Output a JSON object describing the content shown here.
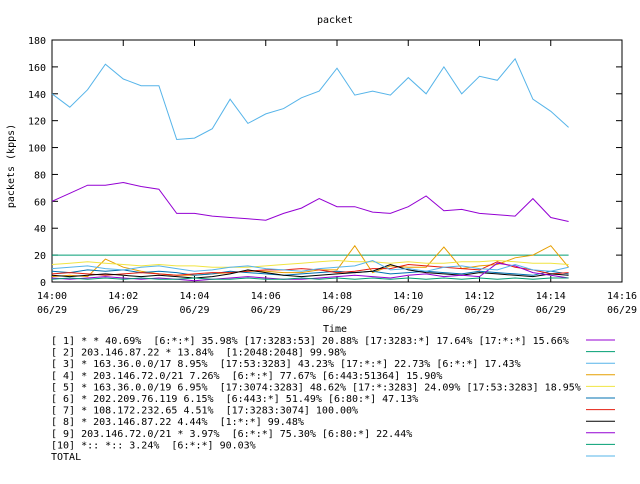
{
  "chart_data": {
    "type": "line",
    "title": "packet",
    "xlabel": "Time",
    "ylabel": "packets (kpps)",
    "ylim": [
      0,
      180
    ],
    "yticks": [
      0,
      20,
      40,
      60,
      80,
      100,
      120,
      140,
      160,
      180
    ],
    "xlim": [
      "14:00",
      "14:16"
    ],
    "xticks": [
      {
        "time": "14:00",
        "date": "06/29"
      },
      {
        "time": "14:02",
        "date": "06/29"
      },
      {
        "time": "14:04",
        "date": "06/29"
      },
      {
        "time": "14:06",
        "date": "06/29"
      },
      {
        "time": "14:08",
        "date": "06/29"
      },
      {
        "time": "14:10",
        "date": "06/29"
      },
      {
        "time": "14:12",
        "date": "06/29"
      },
      {
        "time": "14:14",
        "date": "06/29"
      },
      {
        "time": "14:16",
        "date": "06/29"
      }
    ],
    "legend_position": "bottom",
    "grid": false,
    "x": [
      "14:00",
      "14:00:30",
      "14:01",
      "14:01:30",
      "14:02",
      "14:02:30",
      "14:03",
      "14:03:30",
      "14:04",
      "14:04:30",
      "14:05",
      "14:05:30",
      "14:06",
      "14:06:30",
      "14:07",
      "14:07:30",
      "14:08",
      "14:08:30",
      "14:09",
      "14:09:30",
      "14:10",
      "14:10:30",
      "14:11",
      "14:11:30",
      "14:12",
      "14:12:30",
      "14:13",
      "14:13:30",
      "14:14",
      "14:14:30"
    ],
    "series": [
      {
        "name": "[ 1] * * 40.69%  [6:*:*] 35.98% [17:3283:53] 20.88% [17:3283:*] 17.64% [17:*:*] 15.66%",
        "color": "#9400d3",
        "values": [
          60,
          66,
          72,
          72,
          74,
          71,
          69,
          51,
          51,
          49,
          48,
          47,
          46,
          51,
          55,
          62,
          56,
          56,
          52,
          51,
          56,
          64,
          53,
          54,
          51,
          50,
          49,
          62,
          48,
          45
        ]
      },
      {
        "name": "[ 2] 203.146.87.22 * 13.84%  [1:2048:2048] 99.98%",
        "color": "#009e73",
        "values": [
          20,
          20,
          20,
          20,
          20,
          20,
          20,
          20,
          20,
          20,
          20,
          20,
          20,
          20,
          20,
          20,
          20,
          20,
          20,
          20,
          20,
          20,
          20,
          20,
          20,
          20,
          20,
          20,
          20,
          20
        ]
      },
      {
        "name": "[ 3] * 163.36.0.0/17 8.95%  [17:53:3283] 43.23% [17:*:*] 22.73% [6:*:*] 17.43%",
        "color": "#56b4e9",
        "values": [
          140,
          130,
          143,
          162,
          151,
          146,
          146,
          106,
          107,
          114,
          136,
          118,
          125,
          129,
          137,
          142,
          159,
          139,
          142,
          139,
          152,
          140,
          160,
          140,
          153,
          150,
          166,
          136,
          127,
          115
        ]
      },
      {
        "name": "[ 4] * 203.146.72.0/21 7.26%  [6:*:*] 77.67% [6:443:51364] 15.90%",
        "color": "#e69f00",
        "values": [
          4,
          5,
          4,
          17,
          11,
          8,
          6,
          5,
          5,
          6,
          7,
          8,
          8,
          7,
          7,
          9,
          9,
          27,
          7,
          12,
          11,
          11,
          26,
          10,
          12,
          13,
          18,
          20,
          27,
          11
        ]
      },
      {
        "name": "[ 5] * 163.36.0.0/19 6.95%  [17:3074:3283] 48.62% [17:*:3283] 24.09% [17:53:3283] 18.95%",
        "color": "#f0e442",
        "values": [
          13,
          14,
          15,
          14,
          13,
          12,
          13,
          12,
          12,
          11,
          11,
          11,
          12,
          13,
          14,
          15,
          16,
          15,
          15,
          14,
          15,
          14,
          14,
          15,
          15,
          16,
          15,
          14,
          14,
          13
        ]
      },
      {
        "name": "[ 6] * 202.209.76.119 6.15%  [6:443:*] 51.49% [6:80:*] 47.13%",
        "color": "#0072b2",
        "values": [
          8,
          7,
          9,
          8,
          9,
          7,
          8,
          7,
          5,
          6,
          8,
          7,
          6,
          5,
          6,
          7,
          8,
          7,
          8,
          6,
          7,
          8,
          7,
          6,
          8,
          7,
          6,
          5,
          8,
          6
        ]
      },
      {
        "name": "[ 7] * 108.172.232.65 4.51%  [17:3283:3074] 100.00%",
        "color": "#e51e10",
        "values": [
          6,
          7,
          6,
          5,
          6,
          7,
          6,
          5,
          6,
          7,
          7,
          8,
          9,
          9,
          10,
          9,
          7,
          8,
          10,
          10,
          13,
          12,
          11,
          10,
          9,
          15,
          11,
          9,
          6,
          7
        ]
      },
      {
        "name": "[ 8] * 203.146.87.22 4.44%  [1:*:*] 99.48%",
        "color": "#000000",
        "values": [
          5,
          4,
          5,
          6,
          5,
          4,
          5,
          4,
          3,
          4,
          6,
          9,
          7,
          5,
          4,
          5,
          6,
          7,
          8,
          13,
          9,
          7,
          6,
          5,
          7,
          6,
          5,
          4,
          6,
          5
        ]
      },
      {
        "name": "[ 9] 203.146.72.0/21 * 3.97%  [6:*:*] 75.30% [6:80:*] 22.44%",
        "color": "#9400d3",
        "values": [
          3,
          2,
          3,
          4,
          3,
          2,
          3,
          2,
          1,
          2,
          3,
          4,
          3,
          2,
          2,
          3,
          4,
          5,
          4,
          3,
          5,
          6,
          4,
          5,
          4,
          14,
          12,
          7,
          5,
          3
        ]
      },
      {
        "name": "[10] *:: *:: 3.24%  [6:*:*] 90.03%",
        "color": "#009e73",
        "values": [
          2,
          3,
          2,
          3,
          2,
          3,
          2,
          2,
          3,
          2,
          2,
          3,
          2,
          2,
          3,
          2,
          3,
          2,
          3,
          2,
          3,
          2,
          3,
          2,
          3,
          2,
          3,
          2,
          3,
          3
        ]
      },
      {
        "name": "TOTAL",
        "color": "#56b4e9",
        "values": [
          10,
          11,
          12,
          10,
          9,
          11,
          12,
          10,
          8,
          9,
          11,
          12,
          10,
          9,
          8,
          10,
          11,
          12,
          16,
          9,
          10,
          8,
          11,
          12,
          10,
          9,
          13,
          9,
          8,
          11
        ]
      }
    ]
  }
}
